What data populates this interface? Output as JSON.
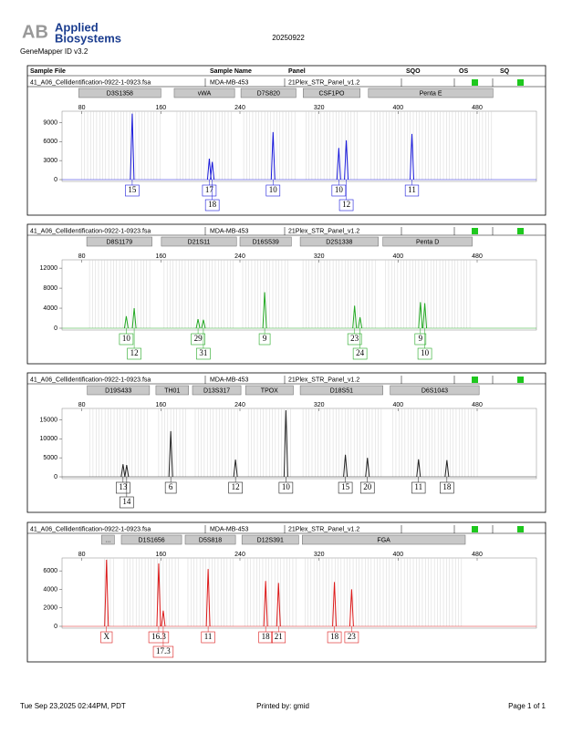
{
  "header": {
    "logo_top": "Applied",
    "logo_bottom": "Biosystems",
    "software": "GeneMapper ID v3.2",
    "date": "20250922"
  },
  "columns": [
    "Sample File",
    "Sample Name",
    "Panel",
    "SQO",
    "OS",
    "SQ"
  ],
  "chart_data": [
    {
      "type": "peaks",
      "sample_file": "41_A06_Cellidentification-0922-1-0923.fsa",
      "sample_name": "MDA-MB-453",
      "panel": "21Plex_STR_Panel_v1.2",
      "color": "#1a1adb",
      "markers": [
        {
          "name": "D3S1358",
          "range": [
            77,
            160
          ]
        },
        {
          "name": "vWA",
          "range": [
            173.5,
            234.6
          ]
        },
        {
          "name": "D7S820",
          "range": [
            241,
            296.7
          ]
        },
        {
          "name": "CSF1PO",
          "range": [
            304,
            361.5
          ]
        },
        {
          "name": "Penta E",
          "range": [
            370,
            496
          ]
        }
      ],
      "x": [
        131,
        209,
        212,
        273.5,
        340,
        347.6,
        414
      ],
      "values": [
        10400,
        3300,
        2800,
        7500,
        5000,
        6200,
        7200
      ],
      "allele_labels": [
        "15",
        "17",
        "18",
        "10",
        "10",
        "12",
        "11"
      ],
      "xlim": [
        60,
        540
      ],
      "xticks": [
        80,
        160,
        240,
        320,
        400,
        480
      ],
      "ylim": [
        0,
        10500
      ],
      "yticks": [
        0,
        3000,
        6000,
        9000
      ]
    },
    {
      "type": "peaks",
      "sample_file": "41_A06_Cellidentification-0922-1-0923.fsa",
      "sample_name": "MDA-MB-453",
      "panel": "21Plex_STR_Panel_v1.2",
      "color": "#22a822",
      "markers": [
        {
          "name": "D8S1179",
          "range": [
            85,
            151
          ]
        },
        {
          "name": "D21S11",
          "range": [
            160.5,
            236.5
          ]
        },
        {
          "name": "D16S539",
          "range": [
            240,
            292
          ]
        },
        {
          "name": "D2S1338",
          "range": [
            301,
            380
          ]
        },
        {
          "name": "Penta D",
          "range": [
            384.6,
            475
          ]
        }
      ],
      "x": [
        125,
        133,
        197.6,
        203,
        265,
        356,
        361.5,
        422.6,
        427
      ],
      "values": [
        2400,
        4000,
        1800,
        1700,
        7200,
        4500,
        2200,
        5200,
        5000
      ],
      "allele_labels": [
        "10",
        "12",
        "29",
        "31",
        "9",
        "23",
        "24",
        "9",
        "10"
      ],
      "xlim": [
        60,
        540
      ],
      "xticks": [
        80,
        160,
        240,
        320,
        400,
        480
      ],
      "ylim": [
        0,
        13300
      ],
      "yticks": [
        0,
        4000,
        8000,
        12000
      ]
    },
    {
      "type": "peaks",
      "sample_file": "41_A06_Cellidentification-0922-1-0923.fsa",
      "sample_name": "MDA-MB-453",
      "panel": "21Plex_STR_Panel_v1.2",
      "color": "#222222",
      "markers": [
        {
          "name": "D19S433",
          "range": [
            85.5,
            148.5
          ]
        },
        {
          "name": "TH01",
          "range": [
            155,
            188
          ]
        },
        {
          "name": "D13S317",
          "range": [
            192,
            241
          ]
        },
        {
          "name": "TPOX",
          "range": [
            245.7,
            294
          ]
        },
        {
          "name": "D18S51",
          "range": [
            301,
            384.6
          ]
        },
        {
          "name": "D6S1043",
          "range": [
            392,
            482
          ]
        }
      ],
      "x": [
        121.7,
        125.4,
        170,
        235.5,
        286.5,
        346.7,
        369,
        420.7,
        449.4
      ],
      "values": [
        3300,
        3100,
        12000,
        4500,
        17500,
        5800,
        5000,
        4600,
        4400
      ],
      "allele_labels": [
        "13",
        "14",
        "6",
        "12",
        "10",
        "15",
        "20",
        "11",
        "18"
      ],
      "xlim": [
        60,
        540
      ],
      "xticks": [
        80,
        160,
        240,
        320,
        400,
        480
      ],
      "ylim": [
        0,
        17500
      ],
      "yticks": [
        0,
        5000,
        10000,
        15000
      ]
    },
    {
      "type": "peaks",
      "sample_file": "41_A06_Cellidentification-0922-1-0923.fsa",
      "sample_name": "MDA-MB-453",
      "panel": "21Plex_STR_Panel_v1.2",
      "color": "#dd1a1a",
      "markers": [
        {
          "name": "...",
          "range": [
            100,
            113
          ]
        },
        {
          "name": "D1S1656",
          "range": [
            120,
            181
          ]
        },
        {
          "name": "D5S818",
          "range": [
            184.6,
            235.5
          ]
        },
        {
          "name": "D12S391",
          "range": [
            242,
            299.4
          ]
        },
        {
          "name": "FGA",
          "range": [
            303,
            468
          ]
        }
      ],
      "x": [
        105,
        157.8,
        162.4,
        207.8,
        266,
        279,
        335.6,
        353
      ],
      "values": [
        7200,
        6800,
        1700,
        6200,
        4900,
        4700,
        4800,
        4000
      ],
      "allele_labels": [
        "X",
        "16.3",
        "17.3",
        "11",
        "18",
        "21",
        "18",
        "23"
      ],
      "xlim": [
        60,
        540
      ],
      "xticks": [
        80,
        160,
        240,
        320,
        400,
        480
      ],
      "ylim": [
        0,
        7200
      ],
      "yticks": [
        0,
        2000,
        4000,
        6000
      ]
    }
  ],
  "footer": {
    "timestamp": "Tue Sep 23,2025 02:44PM, PDT",
    "printed_by": "Printed by: gmid",
    "page": "Page 1 of 1"
  }
}
